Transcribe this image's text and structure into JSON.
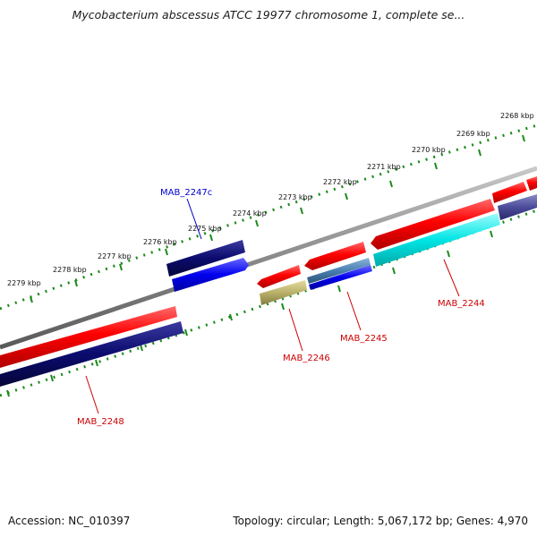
{
  "title": "Mycobacterium abscessus ATCC 19977 chromosome 1, complete se...",
  "accession": "Accession: NC_010397",
  "summary": "Topology: circular; Length: 5,067,172 bp; Genes: 4,970",
  "ticks": [
    "2268 kbp",
    "2269 kbp",
    "2270 kbp",
    "2271 kbp",
    "2272 kbp",
    "2273 kbp",
    "2274 kbp",
    "2275 kbp",
    "2276 kbp",
    "2277 kbp",
    "2278 kbp",
    "2279 kbp"
  ],
  "genes": [
    {
      "name": "MAB_2247c",
      "color": "#0000cc"
    },
    {
      "name": "MAB_2244",
      "color": "#cc0000"
    },
    {
      "name": "MAB_2245",
      "color": "#cc0000"
    },
    {
      "name": "MAB_2246",
      "color": "#cc0000"
    },
    {
      "name": "MAB_2248",
      "color": "#cc0000"
    }
  ],
  "colors": {
    "backbone": "#8a8a8a",
    "tick_track": "#1a8a1a",
    "cds_forward": "#ee0000",
    "cds_reverse": "#0000ee",
    "gene_navy": "#0b0b6e",
    "gene_cyan": "#00e5e5",
    "gene_steel": "#4a7fb0",
    "gene_khaki": "#b9b06a",
    "gene_slate": "#4b4b9a"
  }
}
